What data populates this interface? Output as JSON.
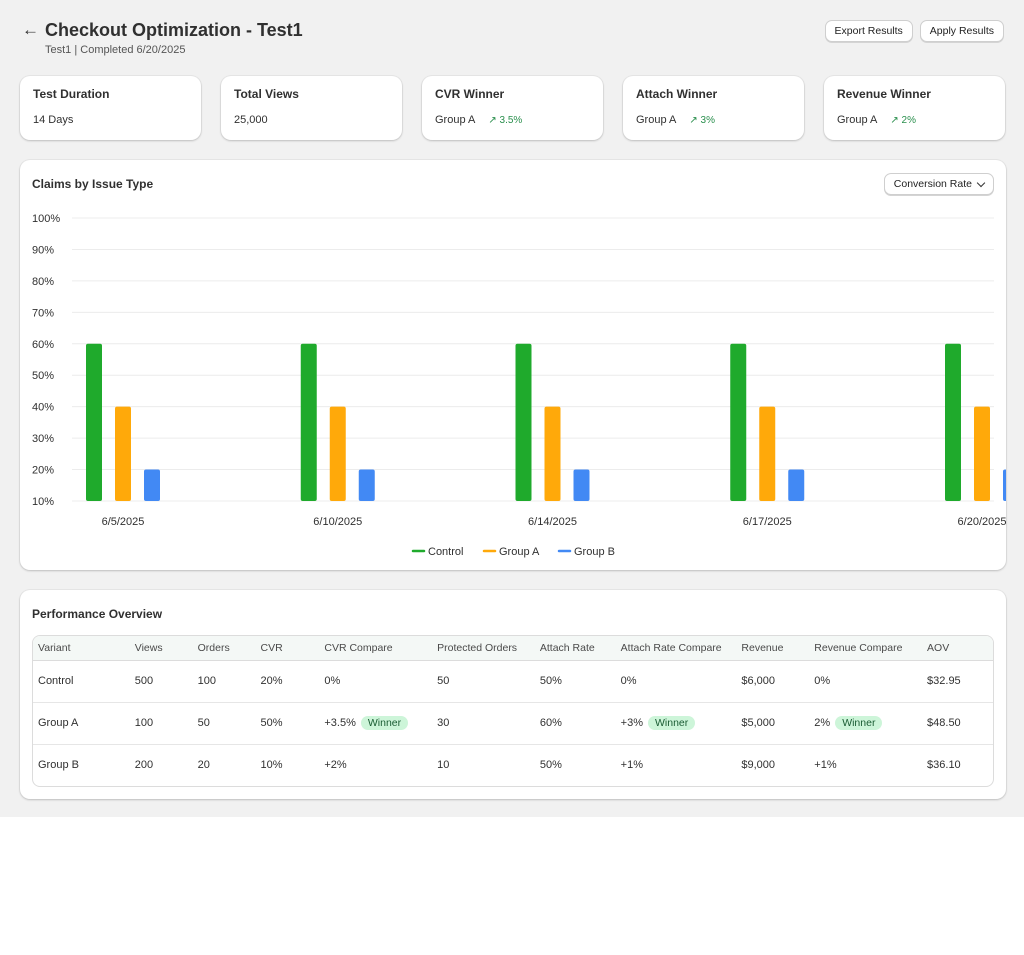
{
  "header": {
    "title": "Checkout Optimization - Test1",
    "subtitle": "Test1 | Completed 6/20/2025",
    "export_label": "Export Results",
    "apply_label": "Apply Results"
  },
  "cards": [
    {
      "title": "Test Duration",
      "value": "14 Days",
      "delta": ""
    },
    {
      "title": "Total Views",
      "value": "25,000",
      "delta": ""
    },
    {
      "title": "CVR Winner",
      "value": "Group A",
      "delta": "3.5%"
    },
    {
      "title": "Attach Winner",
      "value": "Group A",
      "delta": "3%"
    },
    {
      "title": "Revenue Winner",
      "value": "Group A",
      "delta": "2%"
    }
  ],
  "chart_panel": {
    "title": "Claims by Issue Type",
    "dropdown_value": "Conversion Rate"
  },
  "chart_data": {
    "type": "bar",
    "title": "Claims by Issue Type",
    "categories": [
      "6/5/2025",
      "6/10/2025",
      "6/14/2025",
      "6/17/2025",
      "6/20/2025"
    ],
    "series": [
      {
        "name": "Control",
        "values": [
          60,
          60,
          60,
          60,
          60
        ],
        "color": "#1faa2c"
      },
      {
        "name": "Group A",
        "values": [
          40,
          40,
          40,
          40,
          40
        ],
        "color": "#ffa90a"
      },
      {
        "name": "Group B",
        "values": [
          20,
          20,
          20,
          20,
          20
        ],
        "color": "#4289f4"
      }
    ],
    "ylim": [
      10,
      100
    ],
    "yticks": [
      "100%",
      "90%",
      "80%",
      "70%",
      "60%",
      "50%",
      "40%",
      "30%",
      "20%",
      "10%"
    ],
    "grid": true,
    "legend": "bottom-center"
  },
  "table": {
    "title": "Performance Overview",
    "headers": [
      "Variant",
      "Views",
      "Orders",
      "CVR",
      "CVR Compare",
      "Protected Orders",
      "Attach Rate",
      "Attach Rate Compare",
      "Revenue",
      "Revenue Compare",
      "AOV"
    ],
    "winner_label": "Winner",
    "rows": [
      {
        "cells": [
          "Control",
          "500",
          "100",
          "20%",
          "0%",
          "50",
          "50%",
          "0%",
          "$6,000",
          "0%",
          "$32.95"
        ],
        "winners": [
          false,
          false,
          false
        ]
      },
      {
        "cells": [
          "Group A",
          "100",
          "50",
          "50%",
          "+3.5%",
          "30",
          "60%",
          "+3%",
          "$5,000",
          "2%",
          "$48.50"
        ],
        "winners": [
          true,
          true,
          true
        ]
      },
      {
        "cells": [
          "Group B",
          "200",
          "20",
          "10%",
          "+2%",
          "10",
          "50%",
          "+1%",
          "$9,000",
          "+1%",
          "$36.10"
        ],
        "winners": [
          false,
          false,
          false
        ]
      }
    ]
  }
}
